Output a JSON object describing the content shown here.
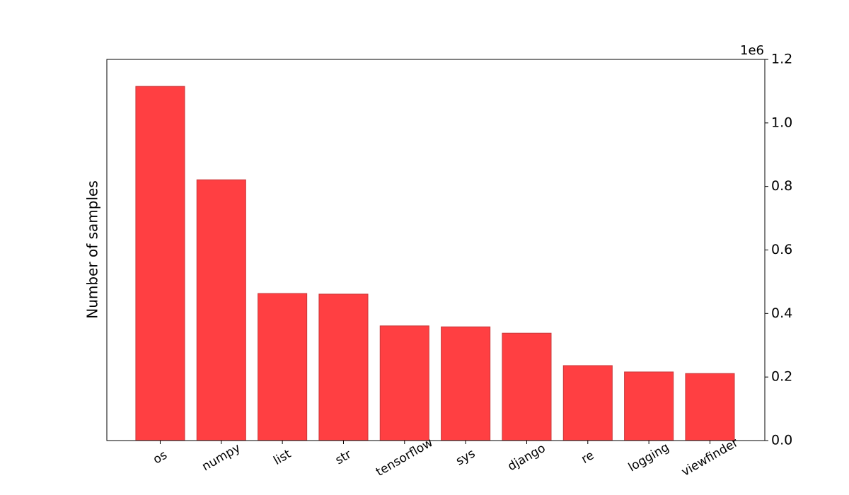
{
  "chart_data": {
    "type": "bar",
    "y_label": "Number of samples",
    "y_offset_label": "1e6",
    "y_axis_side": "right",
    "categories": [
      "os",
      "numpy",
      "list",
      "str",
      "tensorflow",
      "sys",
      "django",
      "re",
      "logging",
      "viewfinder"
    ],
    "values": [
      1115000,
      821000,
      463000,
      461000,
      361000,
      358000,
      338000,
      236000,
      216000,
      211000
    ],
    "color": "#ff3f42",
    "edge_color": "#c8383a",
    "ylim": [
      0,
      1200000
    ],
    "yticks": [
      {
        "value": 0,
        "label": "0.0"
      },
      {
        "value": 200000,
        "label": "0.2"
      },
      {
        "value": 400000,
        "label": "0.4"
      },
      {
        "value": 600000,
        "label": "0.6"
      },
      {
        "value": 800000,
        "label": "0.8"
      },
      {
        "value": 1000000,
        "label": "1.0"
      },
      {
        "value": 1200000,
        "label": "1.2"
      }
    ],
    "grid": false
  }
}
